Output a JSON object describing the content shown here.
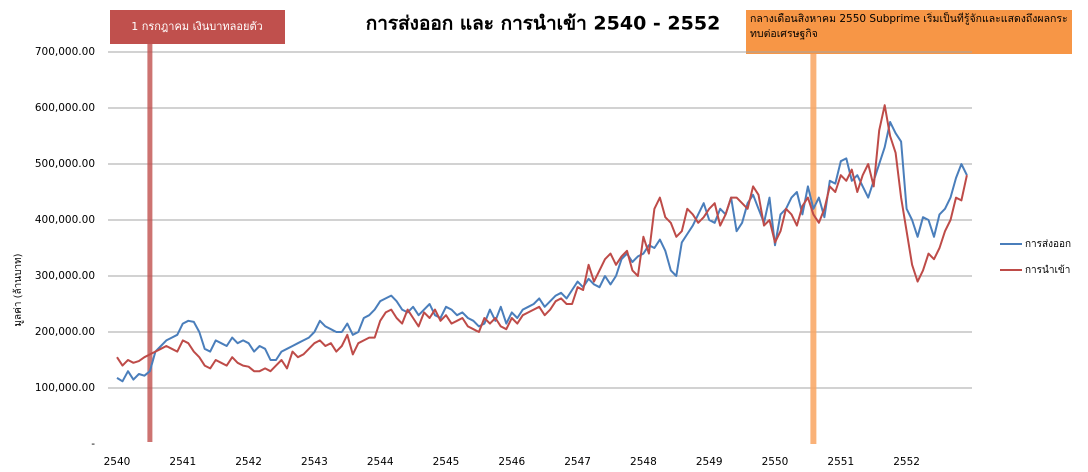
{
  "chart_data": {
    "type": "line",
    "title": "การส่งออก และ การนำเข้า 2540 - 2552",
    "y_label": "มูลค่า (ล้านบาท)",
    "annotations": [
      "1 กรกฎาคม เงินบาทลอยตัว",
      "กลางเดือนสิงหาคม 2550 Subprime เริ่มเป็นที่รู้จักและแสดงถึงผลกระทบต่อเศรษฐกิจ"
    ],
    "categories": [
      "2540",
      null,
      null,
      null,
      null,
      null,
      null,
      null,
      null,
      null,
      null,
      null,
      "2541",
      null,
      null,
      null,
      null,
      null,
      null,
      null,
      null,
      null,
      null,
      null,
      "2542",
      null,
      null,
      null,
      null,
      null,
      null,
      null,
      null,
      null,
      null,
      null,
      "2543",
      null,
      null,
      null,
      null,
      null,
      null,
      null,
      null,
      null,
      null,
      null,
      "2544",
      null,
      null,
      null,
      null,
      null,
      null,
      null,
      null,
      null,
      null,
      null,
      "2545",
      null,
      null,
      null,
      null,
      null,
      null,
      null,
      null,
      null,
      null,
      null,
      "2546",
      null,
      null,
      null,
      null,
      null,
      null,
      null,
      null,
      null,
      null,
      null,
      "2547",
      null,
      null,
      null,
      null,
      null,
      null,
      null,
      null,
      null,
      null,
      null,
      "2548",
      null,
      null,
      null,
      null,
      null,
      null,
      null,
      null,
      null,
      null,
      null,
      "2549",
      null,
      null,
      null,
      null,
      null,
      null,
      null,
      null,
      null,
      null,
      null,
      "2550",
      null,
      null,
      null,
      null,
      null,
      null,
      null,
      null,
      null,
      null,
      null,
      "2551",
      null,
      null,
      null,
      null,
      null,
      null,
      null,
      null,
      null,
      null,
      null,
      "2552",
      null,
      null,
      null,
      null,
      null,
      null,
      null,
      null,
      null,
      null,
      null
    ],
    "series": [
      {
        "name": "การส่งออก",
        "color": "#4a7ebb",
        "values": [
          118000,
          112000,
          130000,
          115000,
          125000,
          122000,
          130000,
          165000,
          175000,
          185000,
          190000,
          195000,
          215000,
          220000,
          218000,
          200000,
          170000,
          165000,
          185000,
          180000,
          175000,
          190000,
          180000,
          185000,
          180000,
          165000,
          175000,
          170000,
          150000,
          150000,
          165000,
          170000,
          175000,
          180000,
          185000,
          190000,
          200000,
          220000,
          210000,
          205000,
          200000,
          200000,
          215000,
          195000,
          200000,
          225000,
          230000,
          240000,
          255000,
          260000,
          265000,
          255000,
          240000,
          235000,
          245000,
          230000,
          240000,
          250000,
          230000,
          225000,
          245000,
          240000,
          230000,
          235000,
          225000,
          220000,
          210000,
          215000,
          240000,
          220000,
          245000,
          215000,
          235000,
          225000,
          240000,
          245000,
          250000,
          260000,
          245000,
          255000,
          265000,
          270000,
          260000,
          275000,
          290000,
          280000,
          295000,
          285000,
          280000,
          300000,
          285000,
          300000,
          330000,
          340000,
          325000,
          335000,
          340000,
          355000,
          350000,
          365000,
          345000,
          310000,
          300000,
          360000,
          375000,
          390000,
          410000,
          430000,
          400000,
          395000,
          420000,
          410000,
          440000,
          380000,
          395000,
          430000,
          445000,
          420000,
          395000,
          440000,
          355000,
          410000,
          420000,
          440000,
          450000,
          410000,
          460000,
          420000,
          440000,
          405000,
          470000,
          465000,
          505000,
          510000,
          470000,
          480000,
          460000,
          440000,
          470000,
          500000,
          530000,
          575000,
          555000,
          540000,
          420000,
          400000,
          370000,
          405000,
          400000,
          370000,
          410000,
          420000,
          440000,
          475000,
          500000,
          480000
        ]
      },
      {
        "name": "การนำเข้า",
        "color": "#be4b48",
        "values": [
          155000,
          140000,
          150000,
          145000,
          148000,
          155000,
          160000,
          165000,
          170000,
          175000,
          170000,
          165000,
          185000,
          180000,
          165000,
          155000,
          140000,
          135000,
          150000,
          145000,
          140000,
          155000,
          145000,
          140000,
          138000,
          130000,
          130000,
          135000,
          130000,
          140000,
          150000,
          135000,
          165000,
          155000,
          160000,
          170000,
          180000,
          185000,
          175000,
          180000,
          165000,
          175000,
          195000,
          160000,
          180000,
          185000,
          190000,
          190000,
          220000,
          235000,
          240000,
          225000,
          215000,
          240000,
          225000,
          210000,
          235000,
          225000,
          240000,
          220000,
          230000,
          215000,
          220000,
          225000,
          210000,
          205000,
          200000,
          225000,
          215000,
          225000,
          210000,
          205000,
          225000,
          215000,
          230000,
          235000,
          240000,
          245000,
          230000,
          240000,
          255000,
          260000,
          250000,
          250000,
          280000,
          275000,
          320000,
          290000,
          310000,
          330000,
          340000,
          320000,
          335000,
          345000,
          310000,
          300000,
          370000,
          340000,
          420000,
          440000,
          405000,
          395000,
          370000,
          380000,
          420000,
          410000,
          395000,
          405000,
          420000,
          430000,
          390000,
          410000,
          440000,
          440000,
          430000,
          420000,
          460000,
          445000,
          390000,
          400000,
          360000,
          380000,
          420000,
          410000,
          390000,
          425000,
          440000,
          410000,
          395000,
          420000,
          460000,
          450000,
          480000,
          470000,
          490000,
          450000,
          480000,
          500000,
          460000,
          560000,
          605000,
          550000,
          520000,
          440000,
          380000,
          320000,
          290000,
          310000,
          340000,
          330000,
          350000,
          380000,
          400000,
          440000,
          435000,
          480000
        ]
      }
    ],
    "ylim": [
      0,
      700000
    ],
    "yticks": [
      {
        "value": 0,
        "label": "-"
      },
      {
        "value": 100000,
        "label": "100,000.00"
      },
      {
        "value": 200000,
        "label": "200,000.00"
      },
      {
        "value": 300000,
        "label": "300,000.00"
      },
      {
        "value": 400000,
        "label": "400,000.00"
      },
      {
        "value": 500000,
        "label": "500,000.00"
      },
      {
        "value": 600000,
        "label": "600,000.00"
      },
      {
        "value": 700000,
        "label": "700,000.00"
      }
    ],
    "grid": true,
    "legend": "right"
  }
}
